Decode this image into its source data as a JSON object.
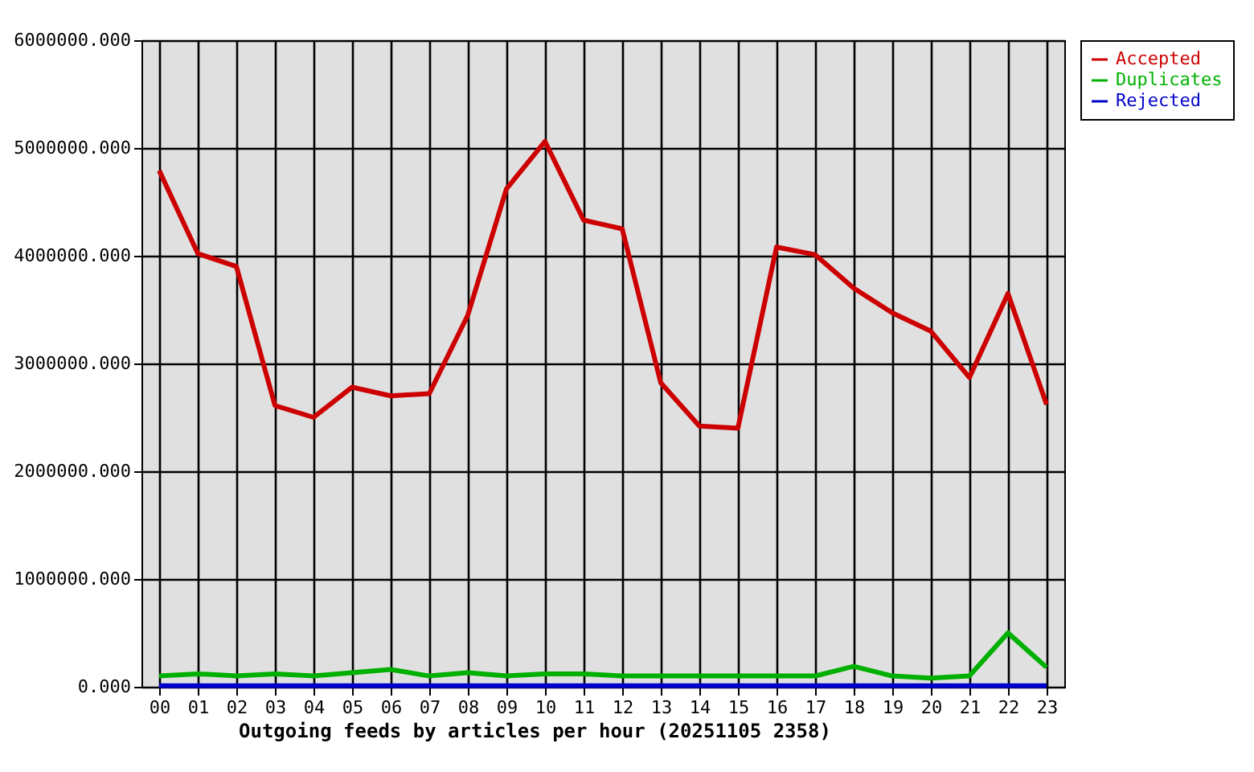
{
  "chart_data": {
    "type": "line",
    "xlabel": "Outgoing feeds by articles per hour (20251105 2358)",
    "categories": [
      "00",
      "01",
      "02",
      "03",
      "04",
      "05",
      "06",
      "07",
      "08",
      "09",
      "10",
      "11",
      "12",
      "13",
      "14",
      "15",
      "16",
      "17",
      "18",
      "19",
      "20",
      "21",
      "22",
      "23"
    ],
    "series": [
      {
        "name": "Accepted",
        "color": "#cc0000",
        "values": [
          4790000,
          4020000,
          3900000,
          2610000,
          2500000,
          2780000,
          2700000,
          2720000,
          3450000,
          4620000,
          5060000,
          4330000,
          4250000,
          2820000,
          2420000,
          2400000,
          4080000,
          4010000,
          3700000,
          3470000,
          3300000,
          2870000,
          3650000,
          2620000
        ]
      },
      {
        "name": "Duplicates",
        "color": "#00b000",
        "values": [
          100000,
          120000,
          100000,
          120000,
          100000,
          130000,
          160000,
          100000,
          130000,
          100000,
          120000,
          120000,
          100000,
          100000,
          100000,
          100000,
          100000,
          100000,
          190000,
          100000,
          80000,
          100000,
          500000,
          180000
        ]
      },
      {
        "name": "Rejected",
        "color": "#0000cc",
        "values": [
          10000,
          10000,
          10000,
          10000,
          10000,
          10000,
          10000,
          10000,
          10000,
          10000,
          10000,
          10000,
          10000,
          10000,
          10000,
          10000,
          10000,
          10000,
          10000,
          10000,
          10000,
          10000,
          10000,
          10000
        ]
      }
    ],
    "ylim": [
      0,
      6000000
    ],
    "yticks": [
      {
        "value": 0,
        "label": "0.000"
      },
      {
        "value": 1000000,
        "label": "1000000.000"
      },
      {
        "value": 2000000,
        "label": "2000000.000"
      },
      {
        "value": 3000000,
        "label": "3000000.000"
      },
      {
        "value": 4000000,
        "label": "4000000.000"
      },
      {
        "value": 5000000,
        "label": "5000000.000"
      },
      {
        "value": 6000000,
        "label": "6000000.000"
      }
    ],
    "grid": true,
    "legend": "top right",
    "marker": "none",
    "line_style": "solid"
  }
}
